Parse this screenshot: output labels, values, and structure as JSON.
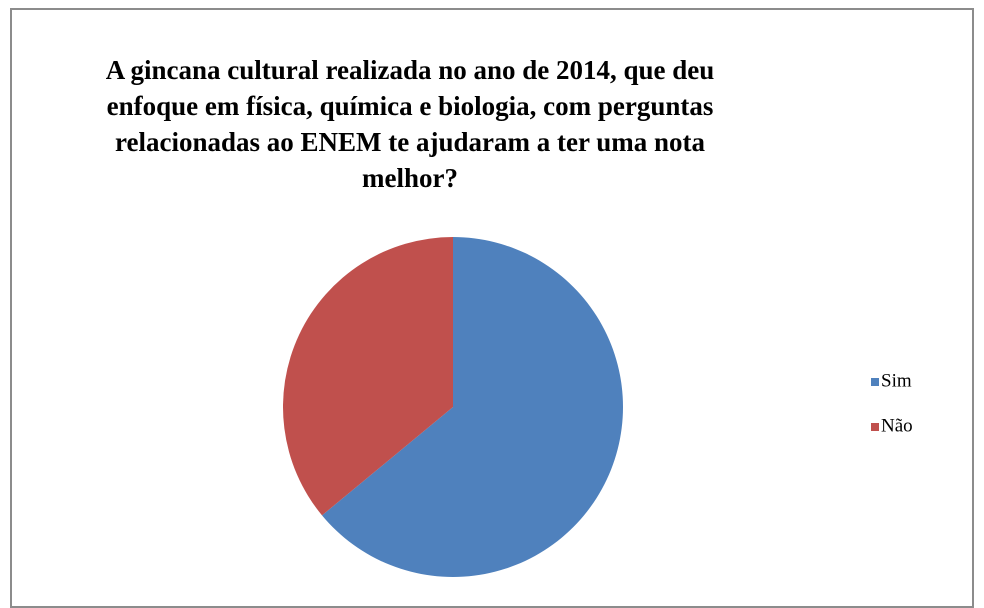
{
  "chart_data": {
    "type": "pie",
    "title": "A gincana cultural realizada no ano de 2014, que deu enfoque em física, química e biologia, com perguntas relacionadas ao ENEM te ajudaram a ter uma nota melhor?",
    "categories": [
      "Sim",
      "Não"
    ],
    "values": [
      64,
      36
    ],
    "colors": [
      "#4f81bd",
      "#c0504d"
    ],
    "legend": "right"
  }
}
